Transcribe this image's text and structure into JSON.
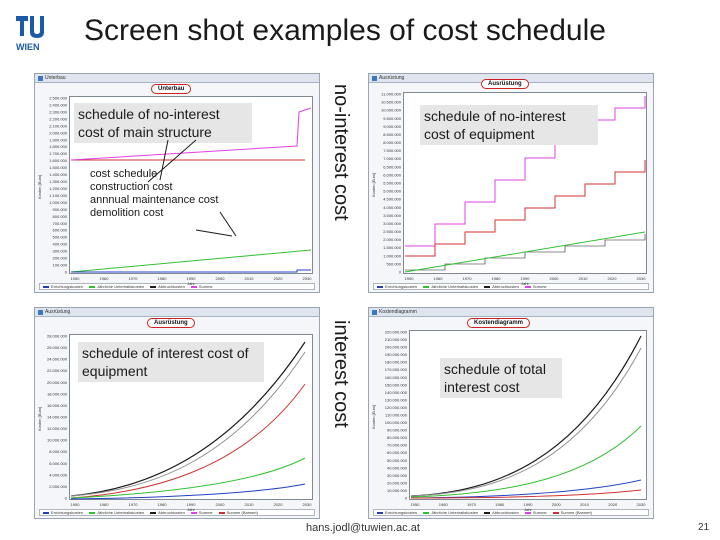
{
  "slide": {
    "title": "Screen shot examples of cost schedule",
    "logo_text": "WIEN",
    "footer_email": "hans.jodl@tuwien.ac.at",
    "page_number": "21"
  },
  "side_labels": {
    "top": "no-interest cost",
    "bottom": "interest cost"
  },
  "callouts": {
    "p1": "schedule of no-interest cost of main structure",
    "p2": "schedule of no-interest cost of equipment",
    "p3": "schedule of interest cost of equipment",
    "p4": "schedule of total interest cost"
  },
  "p1_lines": [
    "cost schedule",
    "construction cost",
    "annnual maintenance cost",
    "demolition cost"
  ],
  "panels": {
    "p1": {
      "window_title": "Unterbau",
      "chart_title": "Unterbau",
      "yaxis": "Kosten [Euro]",
      "xaxis": "Jahr",
      "yticks": [
        "2.500.000",
        "2.400.000",
        "2.300.000",
        "2.200.000",
        "2.100.000",
        "2.000.000",
        "1.900.000",
        "1.800.000",
        "1.700.000",
        "1.600.000",
        "1.500.000",
        "1.400.000",
        "1.300.000",
        "1.200.000",
        "1.100.000",
        "1.000.000",
        "900.000",
        "800.000",
        "700.000",
        "600.000",
        "500.000",
        "400.000",
        "300.000",
        "200.000",
        "100.000",
        "0"
      ],
      "xticks": [
        "1950",
        "1960",
        "1970",
        "1980",
        "1990",
        "2000",
        "2010",
        "2020",
        "2030"
      ]
    },
    "p2": {
      "window_title": "Ausrüstung",
      "chart_title": "Ausrüstung",
      "yaxis": "Kosten [Euro]",
      "xaxis": "Jahr",
      "yticks": [
        "11.000.000",
        "10.500.000",
        "10.000.000",
        "9.500.000",
        "9.000.000",
        "8.500.000",
        "8.000.000",
        "7.500.000",
        "7.000.000",
        "6.500.000",
        "6.000.000",
        "5.500.000",
        "5.000.000",
        "4.500.000",
        "4.000.000",
        "3.500.000",
        "3.000.000",
        "2.500.000",
        "2.000.000",
        "1.500.000",
        "1.000.000",
        "500.000",
        "0"
      ],
      "xticks": [
        "1950",
        "1960",
        "1970",
        "1980",
        "1990",
        "2000",
        "2010",
        "2020",
        "2030"
      ]
    },
    "p3": {
      "window_title": "Ausrüstung",
      "chart_title": "Ausrüstung",
      "yaxis": "Kosten [Euro]",
      "xaxis": "Jahr",
      "yticks": [
        "28.000.000",
        "26.000.000",
        "24.000.000",
        "22.000.000",
        "20.000.000",
        "18.000.000",
        "16.000.000",
        "14.000.000",
        "12.000.000",
        "10.000.000",
        "8.000.000",
        "6.000.000",
        "4.000.000",
        "2.000.000",
        "0"
      ],
      "xticks": [
        "1950",
        "1960",
        "1970",
        "1980",
        "1990",
        "2000",
        "2010",
        "2020",
        "2030"
      ]
    },
    "p4": {
      "window_title": "Kostendiagramm",
      "chart_title": "Kostendiagramm",
      "yaxis": "Kosten [Euro]",
      "xaxis": "Jahr",
      "yticks": [
        "220.000.000",
        "210.000.000",
        "200.000.000",
        "190.000.000",
        "180.000.000",
        "170.000.000",
        "160.000.000",
        "150.000.000",
        "140.000.000",
        "130.000.000",
        "120.000.000",
        "110.000.000",
        "100.000.000",
        "90.000.000",
        "80.000.000",
        "70.000.000",
        "60.000.000",
        "50.000.000",
        "40.000.000",
        "30.000.000",
        "20.000.000",
        "10.000.000",
        "0"
      ],
      "xticks": [
        "1950",
        "1960",
        "1970",
        "1980",
        "1990",
        "2000",
        "2010",
        "2020",
        "2030"
      ]
    }
  },
  "legend_a": [
    {
      "label": "Errichtungskosten",
      "color": "#2040c0"
    },
    {
      "label": "Jährliche Unterhaltskosten",
      "color": "#30c030"
    },
    {
      "label": "Abbruchkosten",
      "color": "#1a1a1a"
    },
    {
      "label": "Summe",
      "color": "#e040e0"
    }
  ],
  "legend_b": [
    {
      "label": "Errichtungskosten",
      "color": "#2040c0"
    },
    {
      "label": "Jährliche Unterhaltskosten",
      "color": "#30c030"
    },
    {
      "label": "Abbruchkosten",
      "color": "#1a1a1a"
    },
    {
      "label": "Summe",
      "color": "#e040e0"
    },
    {
      "label": "Summe (Barwert)",
      "color": "#d03030"
    }
  ],
  "colors": {
    "red": "#d03030",
    "blue": "#2040c0",
    "green": "#30c030",
    "black": "#1a1a1a",
    "magenta": "#e040e0",
    "gray": "#909090"
  }
}
